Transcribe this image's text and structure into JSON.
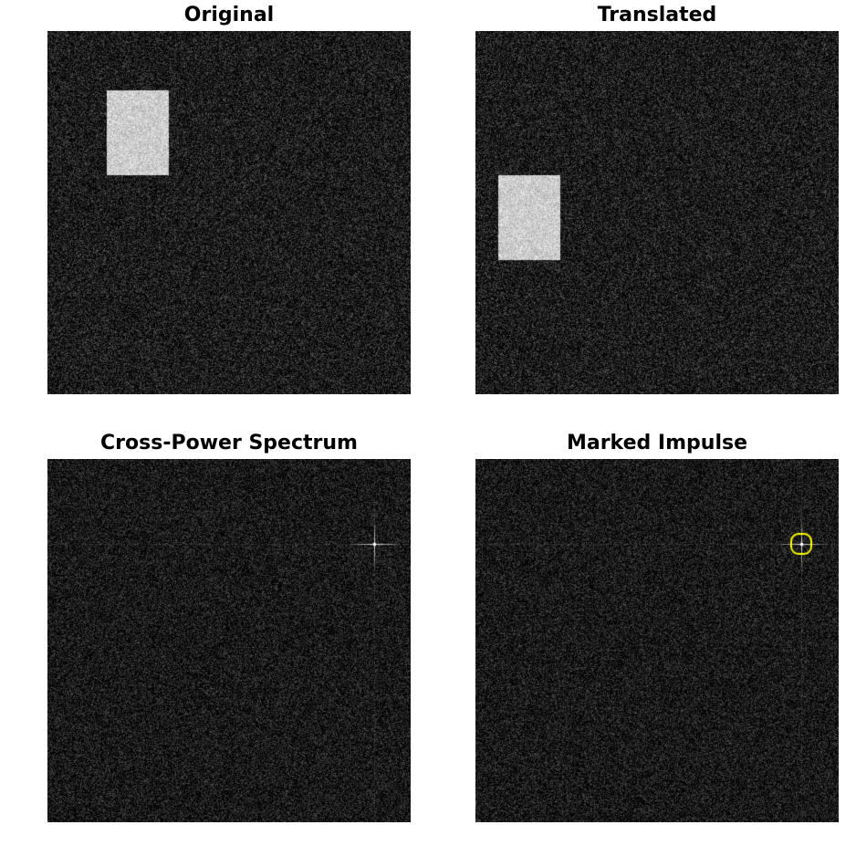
{
  "figure": {
    "panels": [
      {
        "title": "Original"
      },
      {
        "title": "Translated"
      },
      {
        "title": "Cross-Power Spectrum"
      },
      {
        "title": "Marked Impulse"
      }
    ]
  },
  "colors": {
    "background": "#000000",
    "rectangle": "#c8c8c8",
    "impulse": "#ffffff",
    "marker": "#ffff00"
  }
}
